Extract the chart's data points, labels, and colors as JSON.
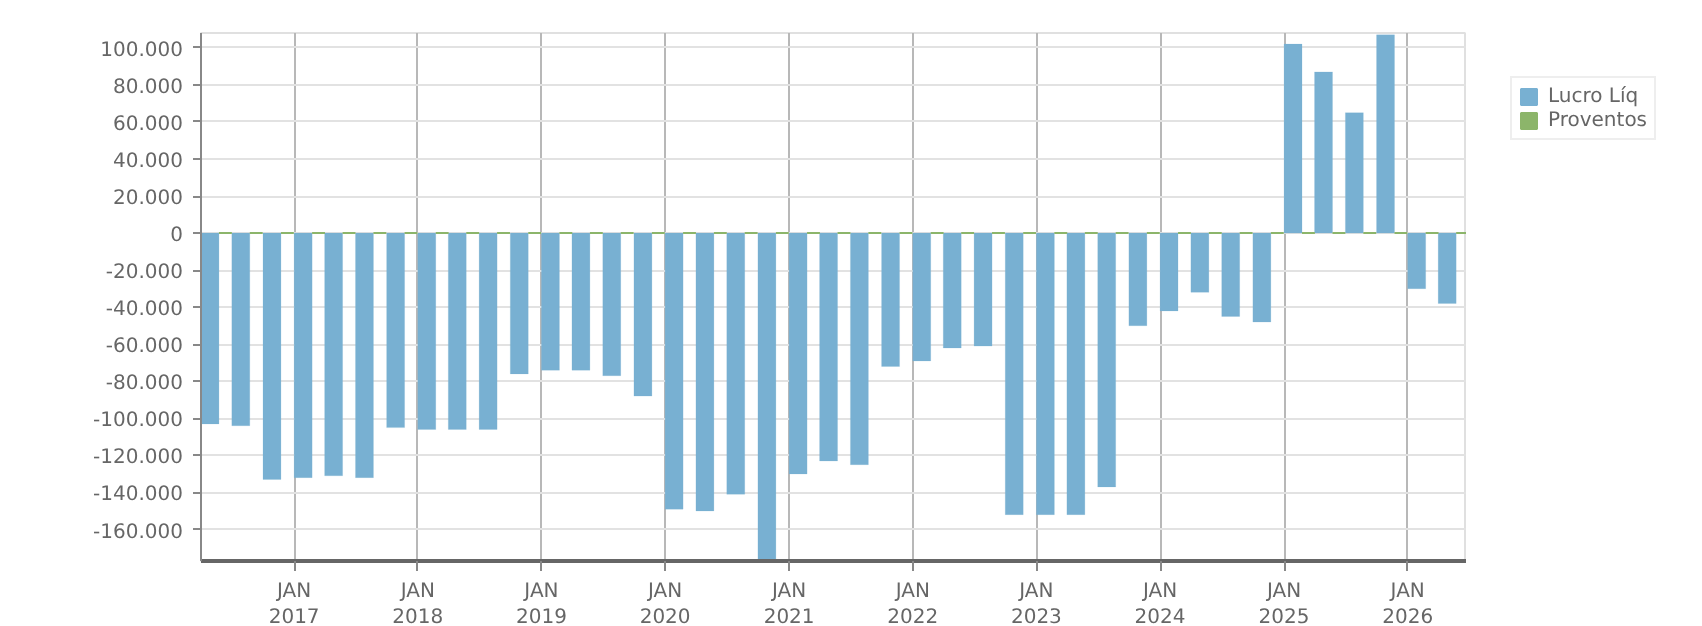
{
  "chart_data": {
    "type": "bar",
    "x": [
      "2016-04",
      "2016-07",
      "2016-10",
      "2017-01",
      "2017-04",
      "2017-07",
      "2017-10",
      "2018-01",
      "2018-04",
      "2018-07",
      "2018-10",
      "2019-01",
      "2019-04",
      "2019-07",
      "2019-10",
      "2020-01",
      "2020-04",
      "2020-07",
      "2020-10",
      "2021-01",
      "2021-04",
      "2021-07",
      "2021-10",
      "2022-01",
      "2022-04",
      "2022-07",
      "2022-10",
      "2023-01",
      "2023-04",
      "2023-07",
      "2023-10",
      "2024-01",
      "2024-04",
      "2024-07",
      "2024-10",
      "2025-01",
      "2025-04",
      "2025-07",
      "2025-10",
      "2026-01",
      "2026-04"
    ],
    "series": [
      {
        "name": "Lucro Líq",
        "color": "#78b0d2",
        "values": [
          -103000,
          -104000,
          -133000,
          -132000,
          -131000,
          -132000,
          -105000,
          -106000,
          -106000,
          -106000,
          -76000,
          -74000,
          -74000,
          -77000,
          -88000,
          -149000,
          -150000,
          -141000,
          -177000,
          -130000,
          -123000,
          -125000,
          -72000,
          -69000,
          -62000,
          -61000,
          -152000,
          -152000,
          -152000,
          -137000,
          -50000,
          -42000,
          -32000,
          -45000,
          -48000,
          102000,
          87000,
          65000,
          107000,
          -30000,
          -38000
        ]
      },
      {
        "name": "Proventos",
        "color": "#8cb56a",
        "values": [
          0,
          0,
          0,
          0,
          0,
          0,
          0,
          0,
          0,
          0,
          0,
          0,
          0,
          0,
          0,
          0,
          0,
          0,
          0,
          0,
          0,
          0,
          0,
          0,
          0,
          0,
          0,
          0,
          0,
          0,
          0,
          0,
          0,
          0,
          0,
          0,
          0,
          0,
          0,
          0,
          0
        ]
      }
    ],
    "xlim": [
      "2016-04",
      "2026-06-25"
    ],
    "xticks": [
      {
        "value": "2017-01",
        "label": "JAN\n2017"
      },
      {
        "value": "2018-01",
        "label": "JAN\n2018"
      },
      {
        "value": "2019-01",
        "label": "JAN\n2019"
      },
      {
        "value": "2020-01",
        "label": "JAN\n2020"
      },
      {
        "value": "2021-01",
        "label": "JAN\n2021"
      },
      {
        "value": "2022-01",
        "label": "JAN\n2022"
      },
      {
        "value": "2023-01",
        "label": "JAN\n2023"
      },
      {
        "value": "2024-01",
        "label": "JAN\n2024"
      },
      {
        "value": "2025-01",
        "label": "JAN\n2025"
      },
      {
        "value": "2026-01",
        "label": "JAN\n2026"
      }
    ],
    "ylim": [
      -177000,
      108000
    ],
    "yticks": [
      {
        "value": 100000,
        "label": "100.000"
      },
      {
        "value": 80000,
        "label": "80.000"
      },
      {
        "value": 60000,
        "label": "60.000"
      },
      {
        "value": 40000,
        "label": "40.000"
      },
      {
        "value": 20000,
        "label": "20.000"
      },
      0,
      {
        "value": -20000,
        "label": "-20.000"
      },
      {
        "value": -40000,
        "label": "-40.000"
      },
      {
        "value": -60000,
        "label": "-60.000"
      },
      {
        "value": -80000,
        "label": "-80.000"
      },
      {
        "value": -100000,
        "label": "-100.000"
      },
      {
        "value": -120000,
        "label": "-120.000"
      },
      {
        "value": -140000,
        "label": "-140.000"
      },
      {
        "value": -160000,
        "label": "-160.000"
      }
    ],
    "grid": true,
    "legend": "top right"
  }
}
